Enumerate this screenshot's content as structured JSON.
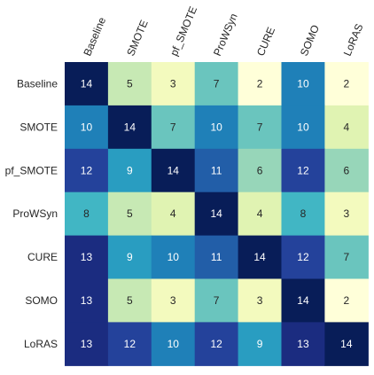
{
  "chart_data": {
    "type": "heatmap",
    "title": "",
    "xlabel": "",
    "ylabel": "",
    "x_categories": [
      "Baseline",
      "SMOTE",
      "pf_SMOTE",
      "ProWSyn",
      "CURE",
      "SOMO",
      "LoRAS"
    ],
    "y_categories": [
      "Baseline",
      "SMOTE",
      "pf_SMOTE",
      "ProWSyn",
      "CURE",
      "SOMO",
      "LoRAS"
    ],
    "values": [
      [
        14,
        5,
        3,
        7,
        2,
        10,
        2
      ],
      [
        10,
        14,
        7,
        10,
        7,
        10,
        4
      ],
      [
        12,
        9,
        14,
        11,
        6,
        12,
        6
      ],
      [
        8,
        5,
        4,
        14,
        4,
        8,
        3
      ],
      [
        13,
        9,
        10,
        11,
        14,
        12,
        7
      ],
      [
        13,
        5,
        3,
        7,
        3,
        14,
        2
      ],
      [
        13,
        12,
        10,
        12,
        9,
        13,
        14
      ]
    ],
    "value_range": [
      2,
      14
    ],
    "colormap": "YlGnBu",
    "show_cell_labels": true,
    "x_tick_position": "top",
    "x_tick_rotation": "rotated",
    "colors": {
      "ramp": [
        "#ffffd9",
        "#edf8b1",
        "#c7e9b4",
        "#7fcdbb",
        "#41b6c4",
        "#1d91c0",
        "#225ea8",
        "#253494",
        "#081d58"
      ],
      "label_light": "#ffffff",
      "label_dark": "#262626",
      "axis_text": "#262626"
    }
  }
}
